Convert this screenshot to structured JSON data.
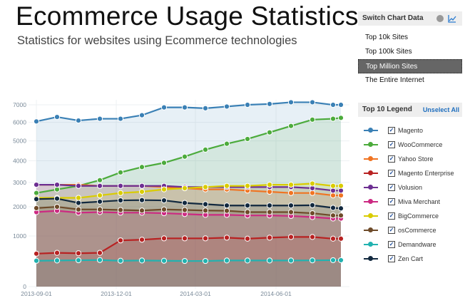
{
  "header": {
    "title": "Ecommerce Usage Statistics",
    "subtitle": "Statistics for websites using Ecommerce technologies"
  },
  "switch_panel": {
    "title": "Switch Chart Data",
    "icons": [
      "pie-chart-icon",
      "line-chart-icon"
    ],
    "options": [
      "Top 10k Sites",
      "Top 100k Sites",
      "Top Million Sites",
      "The Entire Internet"
    ],
    "selected": "Top Million Sites"
  },
  "legend_panel": {
    "title": "Top 10 Legend",
    "unselect_all": "Unselect All"
  },
  "chart_data": {
    "type": "area",
    "title": "Ecommerce Usage Statistics",
    "xlabel": "",
    "ylabel": "",
    "x_tick_labels": [
      "2013-09-01",
      "2013-12-01",
      "2014-03-01",
      "2014-06-01"
    ],
    "y_ticks": [
      0,
      1000,
      2000,
      3000,
      4000,
      5000,
      6000,
      7000
    ],
    "ylim": [
      0,
      7000
    ],
    "grid": true,
    "legend_placement": "right",
    "series": [
      {
        "name": "Magento",
        "color": "#3a80b5",
        "values": [
          6050,
          6300,
          6100,
          6200,
          6200,
          6400,
          6850,
          6850,
          6800,
          6900,
          7000,
          7050,
          7150,
          7150,
          7000,
          7000
        ]
      },
      {
        "name": "WooCommerce",
        "color": "#4cab3c",
        "values": [
          2550,
          2700,
          2850,
          3100,
          3450,
          3700,
          3900,
          4200,
          4550,
          4850,
          5100,
          5450,
          5800,
          6150,
          6200,
          6250
        ]
      },
      {
        "name": "Yahoo Store",
        "color": "#f07422",
        "values": [
          2900,
          2900,
          2900,
          2850,
          2850,
          2850,
          2800,
          2750,
          2700,
          2700,
          2650,
          2600,
          2550,
          2550,
          2450,
          2450
        ]
      },
      {
        "name": "Magento Enterprise",
        "color": "#b82222",
        "values": [
          520,
          540,
          530,
          540,
          870,
          890,
          930,
          930,
          930,
          950,
          920,
          950,
          970,
          970,
          920,
          920
        ]
      },
      {
        "name": "Volusion",
        "color": "#6d2f92",
        "values": [
          2900,
          2900,
          2850,
          2850,
          2850,
          2850,
          2850,
          2800,
          2800,
          2800,
          2800,
          2800,
          2800,
          2750,
          2650,
          2650
        ]
      },
      {
        "name": "Miva Merchant",
        "color": "#cc2a82",
        "values": [
          1800,
          1850,
          1780,
          1800,
          1780,
          1780,
          1760,
          1730,
          1700,
          1700,
          1680,
          1680,
          1660,
          1620,
          1570,
          1570
        ]
      },
      {
        "name": "BigCommerce",
        "color": "#d9cc00",
        "values": [
          2350,
          2350,
          2350,
          2450,
          2550,
          2600,
          2700,
          2750,
          2800,
          2850,
          2850,
          2900,
          2900,
          2950,
          2850,
          2850
        ]
      },
      {
        "name": "osCommerce",
        "color": "#6e4b2a",
        "values": [
          1950,
          2000,
          1900,
          1900,
          1880,
          1860,
          1900,
          1880,
          1860,
          1850,
          1800,
          1800,
          1800,
          1760,
          1680,
          1680
        ]
      },
      {
        "name": "Demandware",
        "color": "#22b2b0",
        "values": [
          360,
          365,
          370,
          375,
          360,
          365,
          360,
          355,
          355,
          365,
          365,
          365,
          365,
          368,
          372,
          372
        ]
      },
      {
        "name": "Zen Cart",
        "color": "#12293f",
        "values": [
          2300,
          2320,
          2150,
          2200,
          2250,
          2260,
          2250,
          2150,
          2100,
          2050,
          2050,
          2050,
          2050,
          2060,
          1960,
          1940
        ]
      }
    ]
  }
}
